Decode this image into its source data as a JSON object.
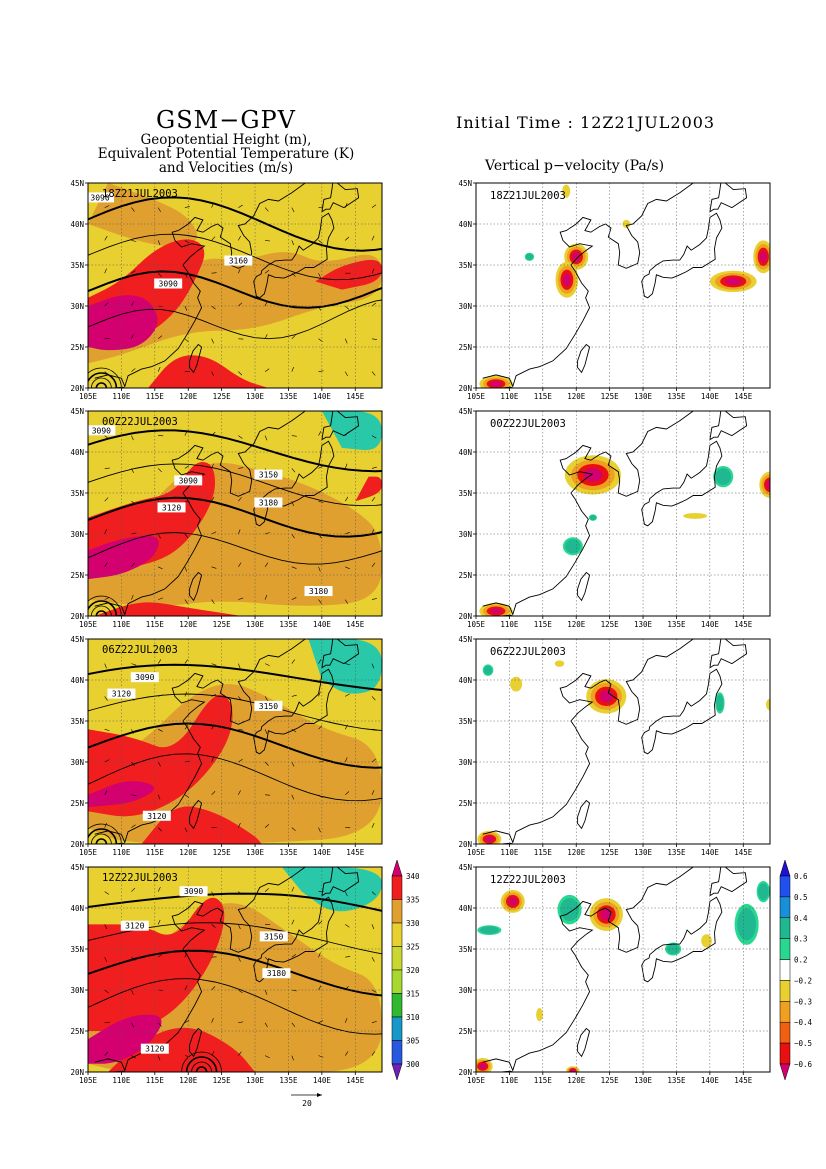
{
  "header": {
    "title": "GSM−GPV",
    "subtitle_lines": [
      "Geopotential Height (m),",
      "Equivalent Potential Temperature (K)",
      "and Velocities (m/s)"
    ],
    "initial_time": "Initial Time : 12Z21JUL2003",
    "right_title": "Vertical p−velocity (Pa/s)"
  },
  "chart_data": [
    {
      "type": "heatmap",
      "panel": "left",
      "title": "Geopotential Height (m), Equivalent Potential Temperature (K) and Velocities (m/s)",
      "x_ticks": [
        "105E",
        "110E",
        "115E",
        "120E",
        "125E",
        "130E",
        "135E",
        "140E",
        "145E"
      ],
      "y_ticks": [
        "20N",
        "25N",
        "30N",
        "35N",
        "40N",
        "45N"
      ],
      "xlim": [
        105,
        149
      ],
      "ylim": [
        20,
        45
      ],
      "legend_levels": [
        340,
        335,
        330,
        325,
        320,
        315,
        310,
        305,
        300
      ],
      "legend_colors": [
        "#d4006f",
        "#f01e1e",
        "#e0a030",
        "#e8d030",
        "#a8d830",
        "#30b830",
        "#1898c8",
        "#2858e0",
        "#7020b8"
      ],
      "vector_scale_label": "20",
      "frames": [
        {
          "time": "18Z21JUL2003",
          "contour_labels": [
            "3090",
            "3090",
            "3160"
          ]
        },
        {
          "time": "00Z22JUL2003",
          "contour_labels": [
            "3090",
            "3090",
            "3150",
            "3120",
            "3180",
            "3180"
          ]
        },
        {
          "time": "06Z22JUL2003",
          "contour_labels": [
            "3090",
            "3120",
            "3150",
            "3120"
          ]
        },
        {
          "time": "12Z22JUL2003",
          "contour_labels": [
            "3090",
            "3120",
            "3150",
            "3180",
            "3120"
          ]
        }
      ]
    },
    {
      "type": "heatmap",
      "panel": "right",
      "title": "Vertical p−velocity (Pa/s)",
      "x_ticks": [
        "105E",
        "110E",
        "115E",
        "120E",
        "125E",
        "130E",
        "135E",
        "140E",
        "145E"
      ],
      "y_ticks": [
        "20N",
        "25N",
        "30N",
        "35N",
        "40N",
        "45N"
      ],
      "xlim": [
        105,
        149
      ],
      "ylim": [
        20,
        45
      ],
      "legend_levels": [
        "0.6",
        "0.5",
        "0.4",
        "0.3",
        "0.2",
        "−0.2",
        "−0.3",
        "−0.4",
        "−0.5",
        "−0.6"
      ],
      "legend_colors": [
        "#2010d0",
        "#2050f0",
        "#1890d8",
        "#20b890",
        "#28d890",
        "#ffffff",
        "#e8d030",
        "#f0a020",
        "#f06010",
        "#e81010",
        "#d4006f"
      ],
      "frames": [
        {
          "time": "18Z21JUL2003"
        },
        {
          "time": "00Z22JUL2003"
        },
        {
          "time": "06Z22JUL2003"
        },
        {
          "time": "12Z22JUL2003"
        }
      ]
    }
  ]
}
